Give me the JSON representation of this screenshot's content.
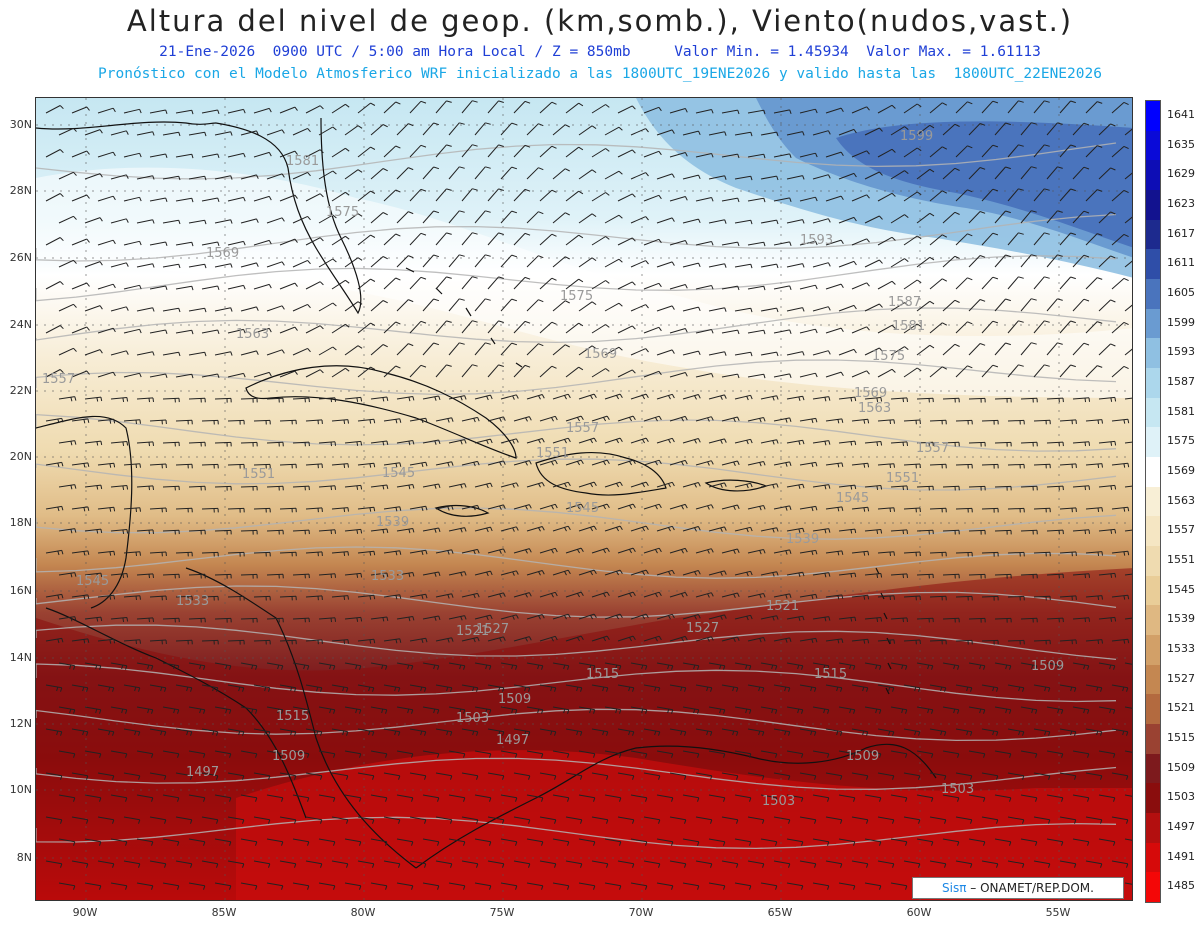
{
  "header": {
    "title": "Altura del nivel de geop. (km,somb.), Viento(nudos,vast.)",
    "line1": "21-Ene-2026  0900 UTC / 5:00 am Hora Local / Z = 850mb     Valor Min. = 1.45934  Valor Max. = 1.61113",
    "line2": "Pronóstico con el Modelo Atmosferico WRF inicializado a las 1800UTC_19ENE2026 y valido hasta las  1800UTC_22ENE2026"
  },
  "axes": {
    "lat_labels": [
      "30N",
      "28N",
      "26N",
      "24N",
      "22N",
      "20N",
      "18N",
      "16N",
      "14N",
      "12N",
      "10N",
      "8N"
    ],
    "lon_labels": [
      "90W",
      "85W",
      "80W",
      "75W",
      "70W",
      "65W",
      "60W",
      "55W"
    ]
  },
  "colorbar": {
    "levels": [
      "1641",
      "1635",
      "1629",
      "1623",
      "1617",
      "1611",
      "1605",
      "1599",
      "1593",
      "1587",
      "1581",
      "1575",
      "1569",
      "1563",
      "1557",
      "1551",
      "1545",
      "1539",
      "1533",
      "1527",
      "1521",
      "1515",
      "1509",
      "1503",
      "1497",
      "1491",
      "1485"
    ],
    "colors": [
      "#0000ff",
      "#0a0ad8",
      "#0d0db5",
      "#12128f",
      "#1d2a8e",
      "#2f4ea8",
      "#4a74bd",
      "#6a9bd1",
      "#8fc0e2",
      "#acd7ec",
      "#c6e7f2",
      "#dff2f8",
      "#ffffff",
      "#f8efd6",
      "#f5e6c3",
      "#efdbb0",
      "#e9cd98",
      "#dfb882",
      "#d2a068",
      "#c48751",
      "#b36a3f",
      "#9a4232",
      "#7d1a1d",
      "#8a0d0d",
      "#b30f0f",
      "#d60a0a",
      "#f40707"
    ]
  },
  "contour_labels": [
    "1599",
    "1593",
    "1587",
    "1581",
    "1581",
    "1575",
    "1575",
    "1575",
    "1569",
    "1569",
    "1569",
    "1563",
    "1563",
    "1557",
    "1557",
    "1557",
    "1551",
    "1551",
    "1551",
    "1545",
    "1545",
    "1545",
    "1545",
    "1539",
    "1539",
    "1533",
    "1533",
    "1527",
    "1527",
    "1521",
    "1521",
    "1515",
    "1515",
    "1515",
    "1509",
    "1509",
    "1509",
    "1509",
    "1503",
    "1503",
    "1503",
    "1497",
    "1497"
  ],
  "credit": {
    "brand": "Sisπ",
    "text": "– ONAMET/REP.DOM."
  }
}
